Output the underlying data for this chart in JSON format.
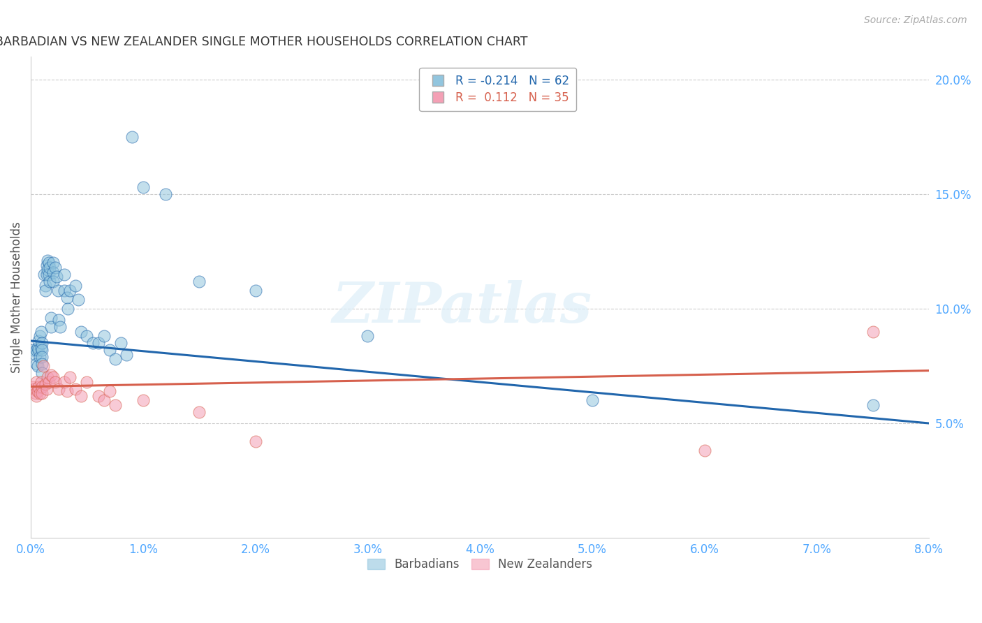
{
  "title": "BARBADIAN VS NEW ZEALANDER SINGLE MOTHER HOUSEHOLDS CORRELATION CHART",
  "source": "Source: ZipAtlas.com",
  "ylabel_left": "Single Mother Households",
  "label_barbadians": "Barbadians",
  "label_nzlanders": "New Zealanders",
  "r_barbadian": -0.214,
  "n_barbadian": 62,
  "r_nzlander": 0.112,
  "n_nzlander": 35,
  "xlim": [
    0.0,
    0.08
  ],
  "ylim": [
    0.0,
    0.21
  ],
  "yticks_right": [
    0.05,
    0.1,
    0.15,
    0.2
  ],
  "ytick_labels_right": [
    "5.0%",
    "10.0%",
    "15.0%",
    "20.0%"
  ],
  "xticks": [
    0.0,
    0.01,
    0.02,
    0.03,
    0.04,
    0.05,
    0.06,
    0.07,
    0.08
  ],
  "xtick_labels": [
    "0.0%",
    "1.0%",
    "2.0%",
    "3.0%",
    "4.0%",
    "5.0%",
    "6.0%",
    "7.0%",
    "8.0%"
  ],
  "color_blue": "#92c5de",
  "color_pink": "#f4a0b5",
  "color_line_blue": "#2166ac",
  "color_line_pink": "#d6604d",
  "color_axis_text": "#4da6ff",
  "watermark_text": "ZIPatlas",
  "blue_line_x0": 0.0,
  "blue_line_y0": 0.086,
  "blue_line_x1": 0.08,
  "blue_line_y1": 0.05,
  "pink_line_x0": 0.0,
  "pink_line_y0": 0.066,
  "pink_line_x1": 0.08,
  "pink_line_y1": 0.073,
  "blue_scatter_x": [
    0.0002,
    0.0004,
    0.0005,
    0.0005,
    0.0006,
    0.0006,
    0.0007,
    0.0007,
    0.0008,
    0.0008,
    0.0009,
    0.0009,
    0.001,
    0.001,
    0.001,
    0.001,
    0.001,
    0.0012,
    0.0013,
    0.0013,
    0.0014,
    0.0014,
    0.0015,
    0.0015,
    0.0016,
    0.0016,
    0.0017,
    0.0017,
    0.0018,
    0.0018,
    0.002,
    0.002,
    0.002,
    0.0022,
    0.0023,
    0.0024,
    0.0025,
    0.0026,
    0.003,
    0.003,
    0.0032,
    0.0033,
    0.0035,
    0.004,
    0.0042,
    0.0045,
    0.005,
    0.0055,
    0.006,
    0.0065,
    0.007,
    0.0075,
    0.008,
    0.0085,
    0.009,
    0.01,
    0.012,
    0.015,
    0.02,
    0.03,
    0.05,
    0.075
  ],
  "blue_scatter_y": [
    0.082,
    0.08,
    0.082,
    0.076,
    0.083,
    0.075,
    0.086,
    0.082,
    0.088,
    0.079,
    0.09,
    0.083,
    0.085,
    0.082,
    0.079,
    0.076,
    0.072,
    0.115,
    0.11,
    0.108,
    0.119,
    0.115,
    0.121,
    0.117,
    0.12,
    0.115,
    0.118,
    0.112,
    0.096,
    0.092,
    0.12,
    0.116,
    0.112,
    0.118,
    0.114,
    0.108,
    0.095,
    0.092,
    0.115,
    0.108,
    0.105,
    0.1,
    0.108,
    0.11,
    0.104,
    0.09,
    0.088,
    0.085,
    0.085,
    0.088,
    0.082,
    0.078,
    0.085,
    0.08,
    0.175,
    0.153,
    0.15,
    0.112,
    0.108,
    0.088,
    0.06,
    0.058
  ],
  "pink_scatter_x": [
    0.0002,
    0.0003,
    0.0004,
    0.0005,
    0.0005,
    0.0006,
    0.0007,
    0.0008,
    0.0009,
    0.001,
    0.001,
    0.0011,
    0.0013,
    0.0014,
    0.0015,
    0.0016,
    0.0018,
    0.002,
    0.0022,
    0.0025,
    0.003,
    0.0032,
    0.0035,
    0.004,
    0.0045,
    0.005,
    0.006,
    0.0065,
    0.007,
    0.0075,
    0.01,
    0.015,
    0.02,
    0.06,
    0.075
  ],
  "pink_scatter_y": [
    0.066,
    0.065,
    0.063,
    0.068,
    0.062,
    0.064,
    0.066,
    0.063,
    0.068,
    0.066,
    0.063,
    0.075,
    0.067,
    0.065,
    0.07,
    0.068,
    0.071,
    0.07,
    0.068,
    0.065,
    0.068,
    0.064,
    0.07,
    0.065,
    0.062,
    0.068,
    0.062,
    0.06,
    0.064,
    0.058,
    0.06,
    0.055,
    0.042,
    0.038,
    0.09
  ]
}
